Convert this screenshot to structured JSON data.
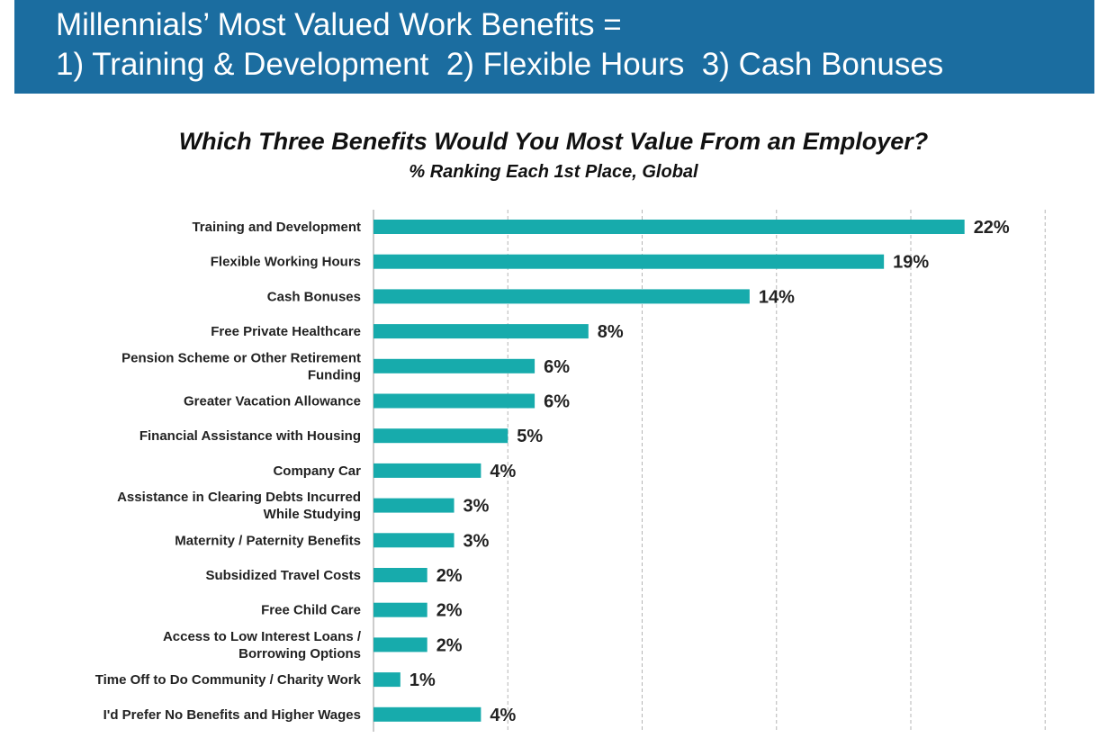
{
  "banner": {
    "line1": "Millennials’ Most Valued Work Benefits =",
    "line2": "1) Training & Development  2) Flexible Hours  3) Cash Bonuses"
  },
  "chart_data": {
    "type": "bar",
    "orientation": "horizontal",
    "title": "Which Three Benefits Would You Most Value From an Employer?",
    "subtitle": "% Ranking Each 1st Place, Global",
    "categories": [
      [
        "Training and Development"
      ],
      [
        "Flexible Working Hours"
      ],
      [
        "Cash Bonuses"
      ],
      [
        "Free Private Healthcare"
      ],
      [
        "Pension Scheme or Other Retirement",
        "Funding"
      ],
      [
        "Greater Vacation Allowance"
      ],
      [
        "Financial Assistance with Housing"
      ],
      [
        "Company Car"
      ],
      [
        "Assistance in Clearing Debts Incurred",
        "While Studying"
      ],
      [
        "Maternity / Paternity Benefits"
      ],
      [
        "Subsidized Travel Costs"
      ],
      [
        "Free Child Care"
      ],
      [
        "Access to Low Interest Loans /",
        "Borrowing Options"
      ],
      [
        "Time Off to Do Community / Charity Work"
      ],
      [
        "I'd Prefer No Benefits and Higher Wages"
      ]
    ],
    "values": [
      22,
      19,
      14,
      8,
      6,
      6,
      5,
      4,
      3,
      3,
      2,
      2,
      2,
      1,
      4
    ],
    "value_labels": [
      "22%",
      "19%",
      "14%",
      "8%",
      "6%",
      "6%",
      "5%",
      "4%",
      "3%",
      "3%",
      "2%",
      "2%",
      "2%",
      "1%",
      "4%"
    ],
    "xlim": [
      0,
      25
    ],
    "grid": "vertical dashed",
    "bar_color": "#17abac"
  }
}
